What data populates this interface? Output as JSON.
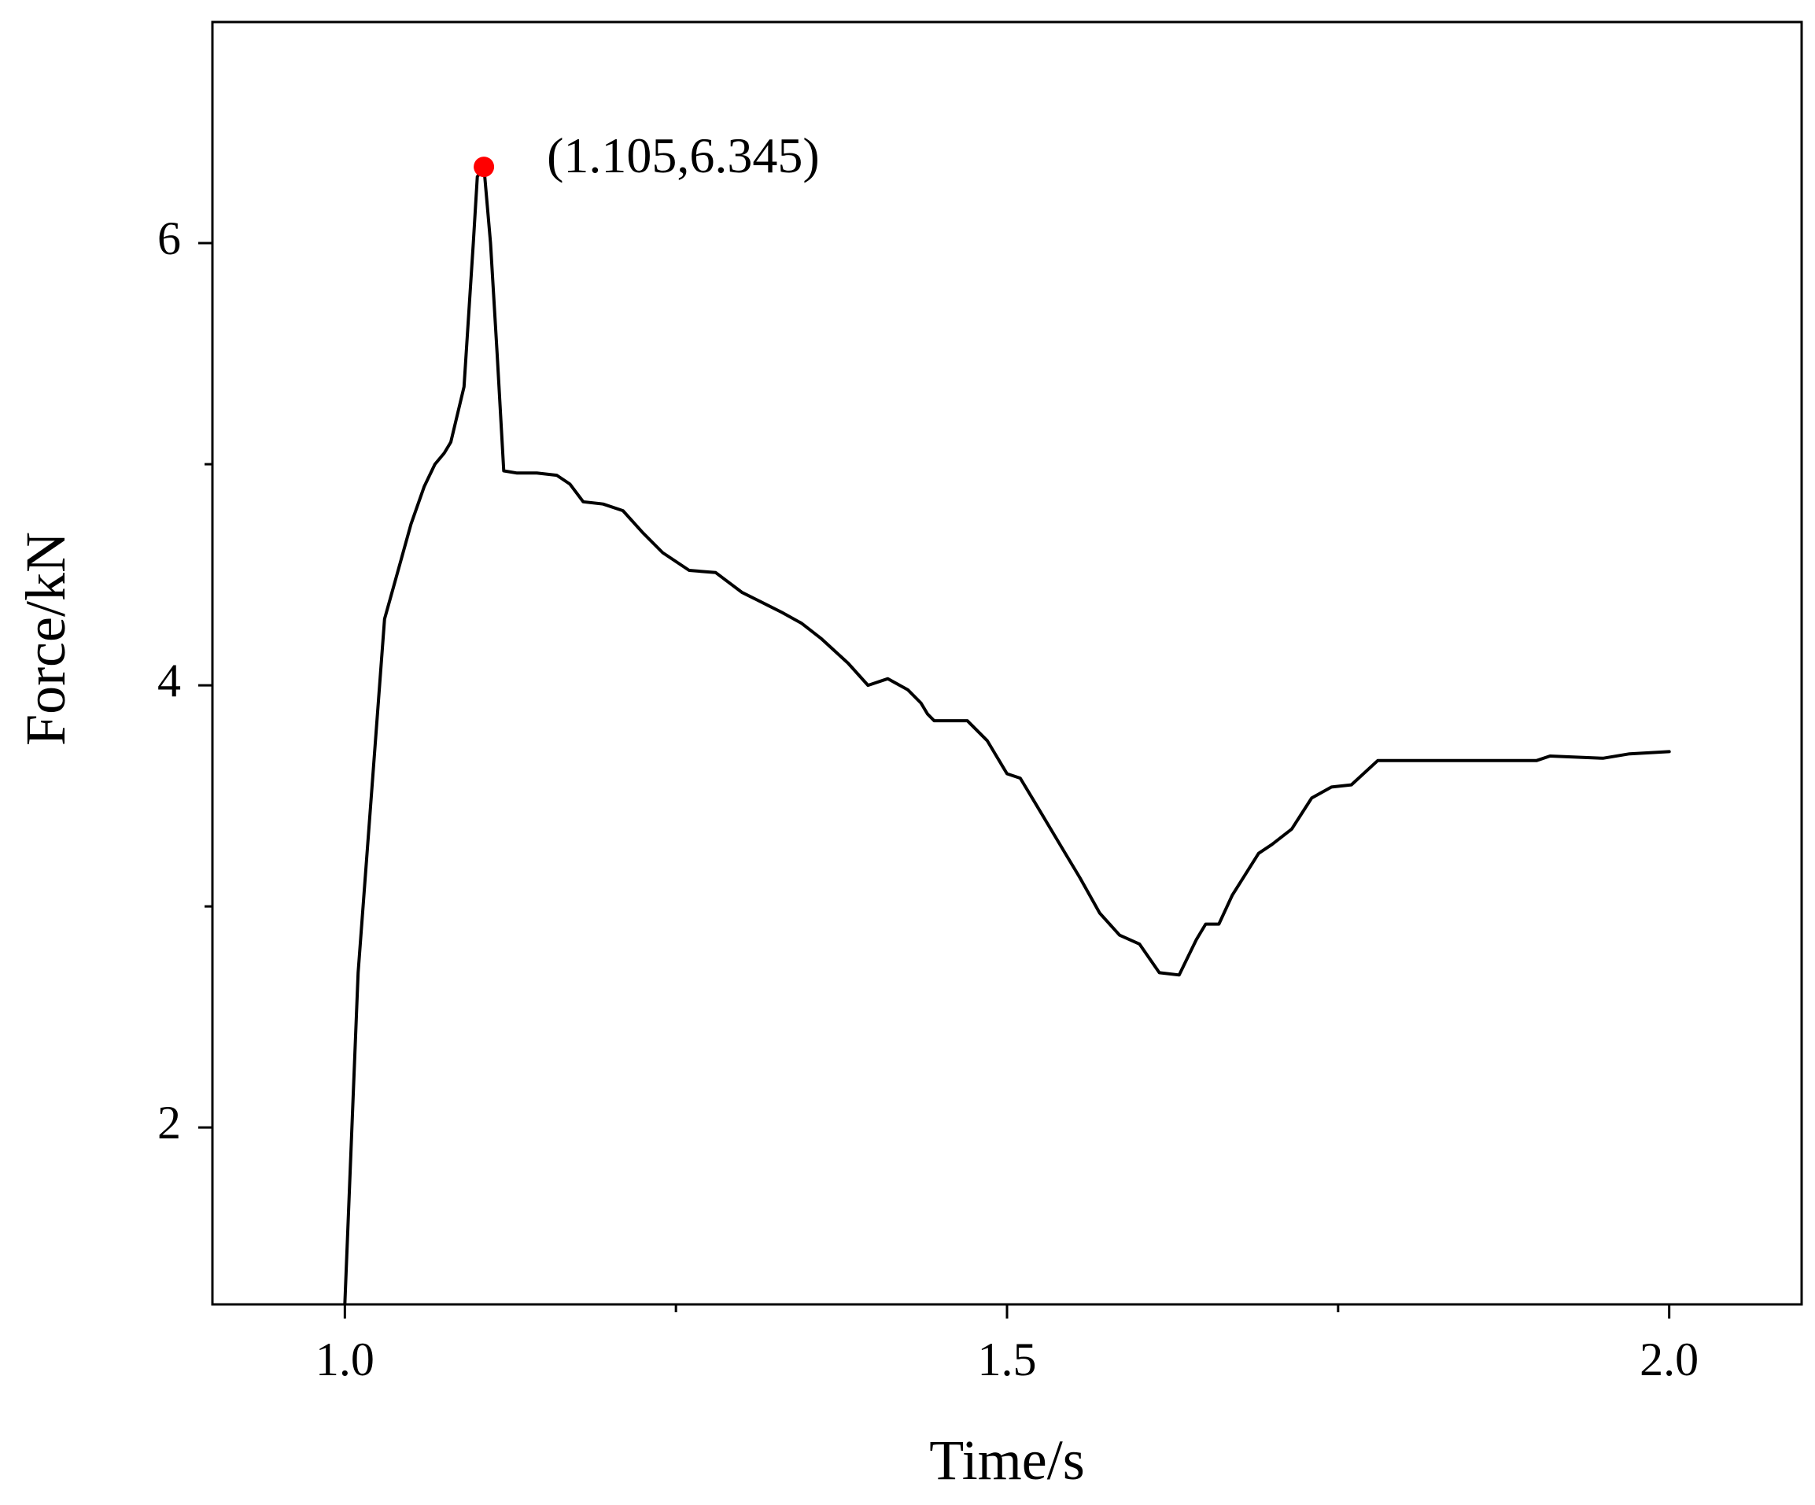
{
  "chart_data": {
    "type": "line",
    "title": "",
    "xlabel": "Time/s",
    "ylabel": "Force/kN",
    "xlim": [
      0.9,
      2.1
    ],
    "ylim": [
      1.2,
      7.0
    ],
    "x_ticks": [
      1.0,
      1.5,
      2.0
    ],
    "x_tick_labels": [
      "1.0",
      "1.5",
      "2.0"
    ],
    "x_minor_ticks": [
      1.25,
      1.75
    ],
    "y_ticks": [
      2,
      4,
      6
    ],
    "y_tick_labels": [
      "2",
      "4",
      "6"
    ],
    "y_minor_ticks": [
      3,
      5
    ],
    "grid": false,
    "legend": "none",
    "colors": {
      "line": "#000000",
      "marker": "#ff0000",
      "axis": "#000000"
    },
    "series": [
      {
        "x": [
          1.0,
          1.01,
          1.02,
          1.03,
          1.037,
          1.05,
          1.06,
          1.068,
          1.075,
          1.08,
          1.09,
          1.097,
          1.1,
          1.105,
          1.11,
          1.115,
          1.12,
          1.13,
          1.145,
          1.16,
          1.17,
          1.18,
          1.195,
          1.21,
          1.225,
          1.24,
          1.26,
          1.28,
          1.3,
          1.31,
          1.32,
          1.33,
          1.345,
          1.36,
          1.38,
          1.395,
          1.41,
          1.425,
          1.435,
          1.44,
          1.445,
          1.455,
          1.47,
          1.485,
          1.5,
          1.51,
          1.52,
          1.535,
          1.545,
          1.555,
          1.57,
          1.585,
          1.6,
          1.615,
          1.63,
          1.643,
          1.65,
          1.66,
          1.67,
          1.69,
          1.7,
          1.715,
          1.73,
          1.745,
          1.76,
          1.78,
          1.79,
          1.8,
          1.82,
          1.9,
          1.91,
          1.95,
          1.97,
          2.0
        ],
        "y": [
          1.2,
          2.7,
          3.5,
          4.3,
          4.45,
          4.73,
          4.9,
          5.0,
          5.05,
          5.1,
          5.35,
          6.0,
          6.3,
          6.345,
          6.0,
          5.5,
          4.97,
          4.96,
          4.96,
          4.95,
          4.91,
          4.83,
          4.82,
          4.79,
          4.69,
          4.6,
          4.52,
          4.51,
          4.42,
          4.39,
          4.36,
          4.33,
          4.28,
          4.21,
          4.1,
          4.0,
          4.03,
          3.98,
          3.92,
          3.87,
          3.84,
          3.84,
          3.84,
          3.75,
          3.6,
          3.58,
          3.48,
          3.33,
          3.23,
          3.13,
          2.97,
          2.87,
          2.83,
          2.7,
          2.69,
          2.85,
          2.92,
          2.92,
          3.05,
          3.24,
          3.28,
          3.35,
          3.49,
          3.54,
          3.55,
          3.66,
          3.66,
          3.66,
          3.66,
          3.66,
          3.68,
          3.67,
          3.69,
          3.7
        ]
      }
    ],
    "annotations": [
      {
        "x": 1.105,
        "y": 6.345,
        "text": "(1.105,6.345)"
      }
    ]
  }
}
